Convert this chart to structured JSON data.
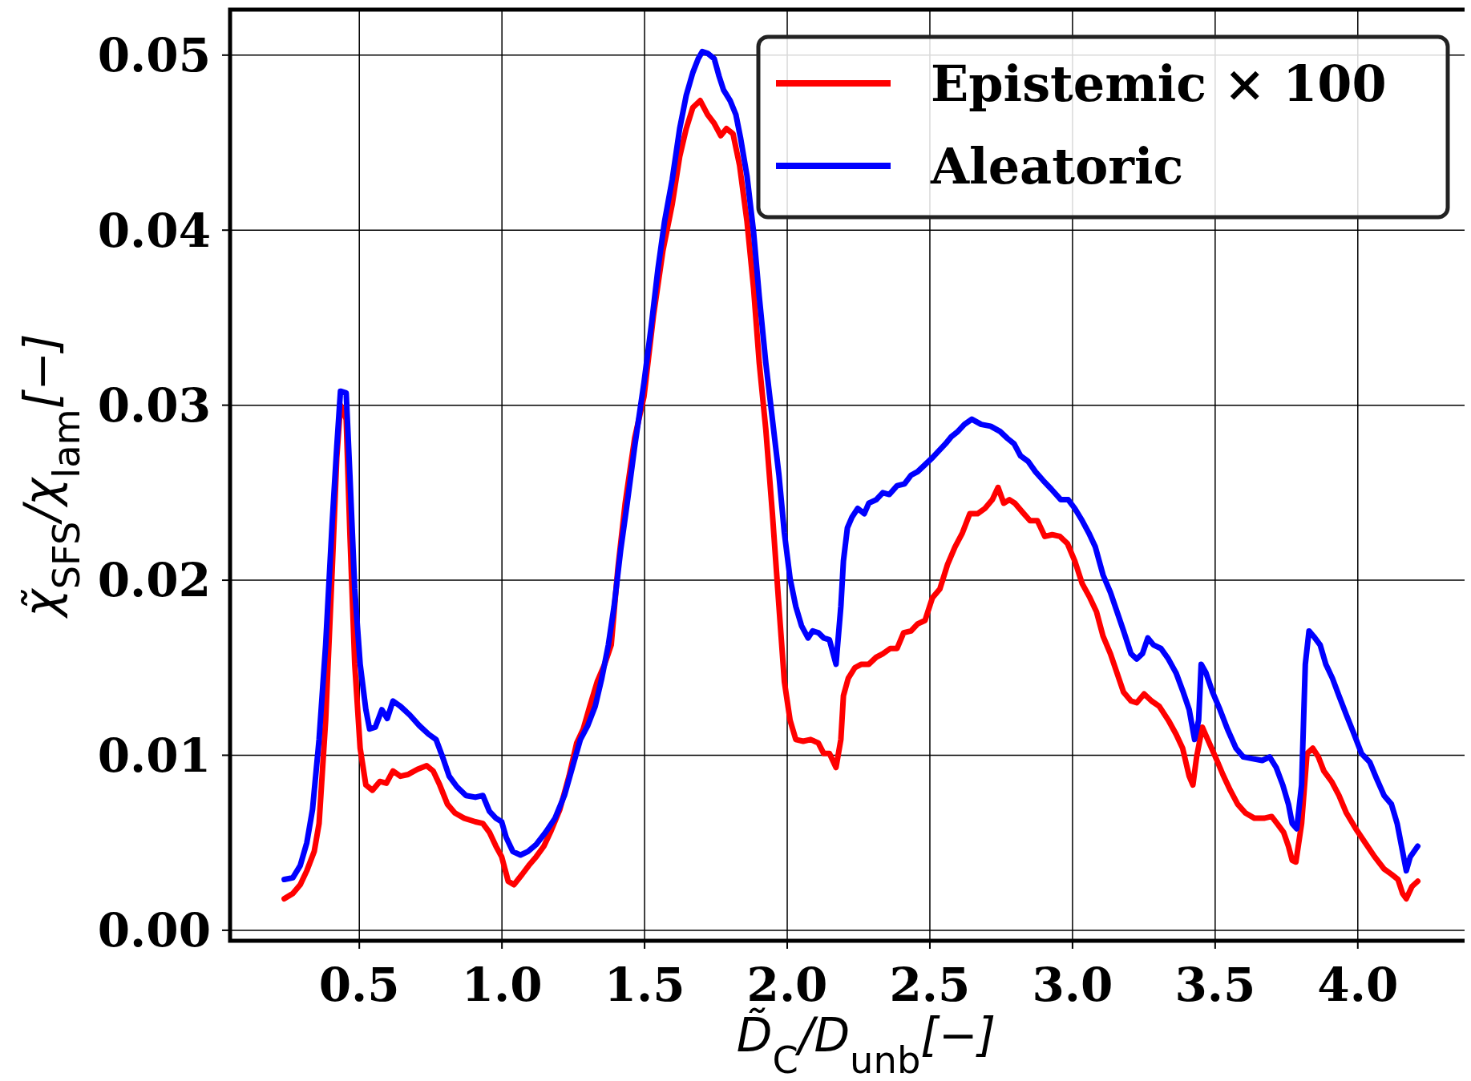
{
  "chart_data": {
    "type": "line",
    "xlabel": "D̃$_{C}$/D$_{unb}$[−]",
    "ylabel": "χ̃$_{SFS}$/χ$_{lam}$[−]",
    "xlim": [
      0.047,
      4.394
    ],
    "ylim": [
      -0.0006,
      0.0526
    ],
    "xticks": [
      {
        "value": 0.5,
        "label": "0.5"
      },
      {
        "value": 1,
        "label": "1.0"
      },
      {
        "value": 1.5,
        "label": "1.5"
      },
      {
        "value": 2,
        "label": "2.0"
      },
      {
        "value": 2.5,
        "label": "2.5"
      },
      {
        "value": 3,
        "label": "3.0"
      },
      {
        "value": 3.5,
        "label": "3.5"
      },
      {
        "value": 4,
        "label": "4.0"
      }
    ],
    "yticks": [
      {
        "value": 0,
        "label": "0.00"
      },
      {
        "value": 0.01,
        "label": "0.01"
      },
      {
        "value": 0.02,
        "label": "0.02"
      },
      {
        "value": 0.03,
        "label": "0.03"
      },
      {
        "value": 0.04,
        "label": "0.04"
      },
      {
        "value": 0.05,
        "label": "0.05"
      }
    ],
    "grid": true,
    "legend": "top right",
    "line_style": "solid",
    "marker": "none",
    "series": [
      {
        "name": "Epistemic × 100",
        "color": "#ff0000",
        "x": [
          0.237,
          0.267,
          0.293,
          0.316,
          0.342,
          0.359,
          0.382,
          0.405,
          0.421,
          0.434,
          0.454,
          0.467,
          0.484,
          0.503,
          0.523,
          0.546,
          0.572,
          0.595,
          0.618,
          0.644,
          0.671,
          0.704,
          0.736,
          0.759,
          0.782,
          0.809,
          0.835,
          0.868,
          0.907,
          0.933,
          0.956,
          0.979,
          0.999,
          1.022,
          1.042,
          1.071,
          1.094,
          1.12,
          1.147,
          1.17,
          1.203,
          1.235,
          1.262,
          1.285,
          1.308,
          1.334,
          1.36,
          1.383,
          1.406,
          1.432,
          1.465,
          1.498,
          1.531,
          1.564,
          1.597,
          1.623,
          1.646,
          1.669,
          1.695,
          1.721,
          1.744,
          1.767,
          1.787,
          1.81,
          1.833,
          1.859,
          1.882,
          1.902,
          1.925,
          1.948,
          1.971,
          1.99,
          2.01,
          2.03,
          2.056,
          2.082,
          2.109,
          2.128,
          2.148,
          2.171,
          2.188,
          2.197,
          2.214,
          2.237,
          2.26,
          2.286,
          2.312,
          2.335,
          2.361,
          2.385,
          2.408,
          2.434,
          2.457,
          2.483,
          2.509,
          2.535,
          2.562,
          2.588,
          2.614,
          2.64,
          2.667,
          2.693,
          2.719,
          2.739,
          2.759,
          2.779,
          2.798,
          2.824,
          2.851,
          2.877,
          2.903,
          2.929,
          2.956,
          2.982,
          3.008,
          3.034,
          3.061,
          3.084,
          3.107,
          3.133,
          3.156,
          3.179,
          3.205,
          3.225,
          3.251,
          3.277,
          3.304,
          3.336,
          3.363,
          3.386,
          3.409,
          3.422,
          3.435,
          3.455,
          3.474,
          3.501,
          3.527,
          3.553,
          3.579,
          3.606,
          3.638,
          3.671,
          3.698,
          3.717,
          3.74,
          3.757,
          3.77,
          3.783,
          3.803,
          3.822,
          3.842,
          3.862,
          3.881,
          3.908,
          3.934,
          3.96,
          3.993,
          4.026,
          4.059,
          4.092,
          4.118,
          4.141,
          4.157,
          4.17,
          4.19,
          4.21
        ],
        "values": [
          0.0018,
          0.0021,
          0.0026,
          0.0034,
          0.0045,
          0.0061,
          0.012,
          0.0206,
          0.027,
          0.03,
          0.0292,
          0.0227,
          0.0152,
          0.0104,
          0.0083,
          0.008,
          0.0085,
          0.0084,
          0.0091,
          0.0088,
          0.0089,
          0.0092,
          0.0094,
          0.0091,
          0.0083,
          0.0072,
          0.0067,
          0.0064,
          0.0062,
          0.0061,
          0.0056,
          0.0048,
          0.0042,
          0.0028,
          0.0026,
          0.0032,
          0.0037,
          0.0042,
          0.0048,
          0.0056,
          0.0069,
          0.0088,
          0.0107,
          0.0115,
          0.0128,
          0.0142,
          0.0152,
          0.0163,
          0.0206,
          0.0244,
          0.0281,
          0.0305,
          0.0351,
          0.0388,
          0.0415,
          0.0442,
          0.0458,
          0.047,
          0.0474,
          0.0466,
          0.0461,
          0.0454,
          0.0458,
          0.0455,
          0.0437,
          0.0405,
          0.0367,
          0.0324,
          0.0286,
          0.0238,
          0.0185,
          0.0142,
          0.012,
          0.0109,
          0.0108,
          0.0109,
          0.0107,
          0.0101,
          0.0101,
          0.0093,
          0.0109,
          0.0134,
          0.0144,
          0.015,
          0.0152,
          0.0152,
          0.0156,
          0.0158,
          0.0161,
          0.0161,
          0.017,
          0.0171,
          0.0175,
          0.0177,
          0.019,
          0.0195,
          0.0209,
          0.0219,
          0.0227,
          0.0238,
          0.0238,
          0.0241,
          0.0246,
          0.0253,
          0.0244,
          0.0246,
          0.0244,
          0.0239,
          0.0234,
          0.0234,
          0.0225,
          0.0226,
          0.0225,
          0.0221,
          0.0211,
          0.0198,
          0.019,
          0.0182,
          0.0168,
          0.0158,
          0.0147,
          0.0136,
          0.0131,
          0.013,
          0.0135,
          0.0131,
          0.0128,
          0.012,
          0.0112,
          0.0104,
          0.0088,
          0.0083,
          0.0099,
          0.0116,
          0.0109,
          0.0099,
          0.0089,
          0.008,
          0.0072,
          0.0067,
          0.0064,
          0.0064,
          0.0065,
          0.0061,
          0.0056,
          0.0048,
          0.004,
          0.0039,
          0.0061,
          0.0101,
          0.0104,
          0.0099,
          0.0091,
          0.0085,
          0.0077,
          0.0067,
          0.0058,
          0.005,
          0.0042,
          0.0035,
          0.0032,
          0.0029,
          0.0021,
          0.0018,
          0.0025,
          0.0028
        ]
      },
      {
        "name": "Aleatoric",
        "color": "#0000ff",
        "x": [
          0.237,
          0.267,
          0.293,
          0.316,
          0.336,
          0.359,
          0.382,
          0.405,
          0.421,
          0.434,
          0.454,
          0.467,
          0.484,
          0.503,
          0.523,
          0.536,
          0.556,
          0.579,
          0.598,
          0.618,
          0.644,
          0.677,
          0.71,
          0.743,
          0.769,
          0.792,
          0.815,
          0.842,
          0.874,
          0.907,
          0.933,
          0.956,
          0.979,
          0.999,
          1.015,
          1.038,
          1.065,
          1.091,
          1.12,
          1.153,
          1.186,
          1.219,
          1.252,
          1.275,
          1.301,
          1.327,
          1.35,
          1.373,
          1.393,
          1.416,
          1.439,
          1.465,
          1.498,
          1.524,
          1.547,
          1.57,
          1.597,
          1.623,
          1.646,
          1.669,
          1.688,
          1.702,
          1.721,
          1.744,
          1.761,
          1.777,
          1.8,
          1.82,
          1.836,
          1.859,
          1.882,
          1.902,
          1.925,
          1.948,
          1.971,
          1.99,
          2.01,
          2.03,
          2.05,
          2.073,
          2.089,
          2.109,
          2.128,
          2.148,
          2.171,
          2.188,
          2.197,
          2.211,
          2.227,
          2.247,
          2.27,
          2.286,
          2.312,
          2.335,
          2.358,
          2.385,
          2.411,
          2.434,
          2.457,
          2.483,
          2.509,
          2.532,
          2.555,
          2.575,
          2.598,
          2.621,
          2.647,
          2.68,
          2.713,
          2.746,
          2.772,
          2.795,
          2.818,
          2.844,
          2.87,
          2.897,
          2.926,
          2.959,
          2.985,
          3.008,
          3.034,
          3.057,
          3.08,
          3.107,
          3.133,
          3.156,
          3.179,
          3.205,
          3.225,
          3.245,
          3.264,
          3.284,
          3.31,
          3.336,
          3.363,
          3.386,
          3.409,
          3.428,
          3.442,
          3.451,
          3.468,
          3.491,
          3.517,
          3.543,
          3.573,
          3.599,
          3.632,
          3.665,
          3.691,
          3.714,
          3.737,
          3.757,
          3.77,
          3.786,
          3.803,
          3.816,
          3.829,
          3.845,
          3.868,
          3.888,
          3.911,
          3.934,
          3.96,
          3.987,
          4.013,
          4.042,
          4.065,
          4.092,
          4.118,
          4.138,
          4.157,
          4.17,
          4.184,
          4.21
        ],
        "values": [
          0.0029,
          0.003,
          0.0037,
          0.005,
          0.0069,
          0.0109,
          0.0163,
          0.0233,
          0.0276,
          0.0308,
          0.0307,
          0.026,
          0.0195,
          0.0152,
          0.0126,
          0.0115,
          0.0116,
          0.0126,
          0.0121,
          0.0131,
          0.0128,
          0.0123,
          0.0117,
          0.0112,
          0.0109,
          0.0099,
          0.0088,
          0.0082,
          0.0077,
          0.0076,
          0.0077,
          0.0068,
          0.0064,
          0.0062,
          0.0053,
          0.0045,
          0.0043,
          0.0045,
          0.0049,
          0.0056,
          0.0064,
          0.0077,
          0.0096,
          0.0109,
          0.0117,
          0.0128,
          0.0144,
          0.0163,
          0.0185,
          0.0217,
          0.0244,
          0.0276,
          0.0313,
          0.0346,
          0.0378,
          0.0405,
          0.0429,
          0.0458,
          0.0477,
          0.049,
          0.0498,
          0.0502,
          0.0501,
          0.0498,
          0.0488,
          0.048,
          0.0474,
          0.0466,
          0.0453,
          0.0431,
          0.0399,
          0.0362,
          0.0324,
          0.0292,
          0.026,
          0.0227,
          0.0201,
          0.0185,
          0.0174,
          0.0167,
          0.0171,
          0.017,
          0.0167,
          0.0166,
          0.0152,
          0.0185,
          0.0211,
          0.023,
          0.0236,
          0.0241,
          0.0238,
          0.0244,
          0.0246,
          0.025,
          0.0249,
          0.0254,
          0.0255,
          0.026,
          0.0262,
          0.0266,
          0.027,
          0.0274,
          0.0278,
          0.0282,
          0.0285,
          0.0289,
          0.0292,
          0.0289,
          0.0288,
          0.0285,
          0.0281,
          0.0278,
          0.0271,
          0.0268,
          0.0262,
          0.0257,
          0.0252,
          0.0246,
          0.0246,
          0.0241,
          0.0234,
          0.0227,
          0.0219,
          0.0203,
          0.0193,
          0.0182,
          0.0171,
          0.0158,
          0.0155,
          0.0158,
          0.0167,
          0.0163,
          0.0161,
          0.0155,
          0.0147,
          0.0137,
          0.0126,
          0.0109,
          0.012,
          0.0152,
          0.0147,
          0.0136,
          0.0126,
          0.0115,
          0.0104,
          0.0099,
          0.0098,
          0.0097,
          0.0099,
          0.0093,
          0.0083,
          0.0072,
          0.0061,
          0.0058,
          0.0083,
          0.0152,
          0.0171,
          0.0168,
          0.0163,
          0.0152,
          0.0144,
          0.0134,
          0.0123,
          0.0112,
          0.0101,
          0.0096,
          0.0087,
          0.0077,
          0.0072,
          0.0061,
          0.0045,
          0.0034,
          0.0042,
          0.0048
        ]
      }
    ]
  }
}
